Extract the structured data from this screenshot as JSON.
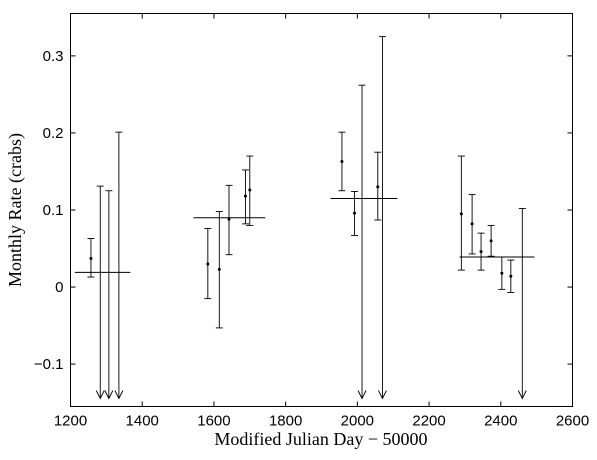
{
  "chart_data": {
    "type": "scatter",
    "title": "",
    "xlabel": "Modified Julian Day − 50000",
    "ylabel": "Monthly Rate (crabs)",
    "xlim": [
      1200,
      2600
    ],
    "ylim": [
      -0.155,
      0.355
    ],
    "grid": false,
    "xticks": [
      {
        "value": 1200,
        "label": "1200"
      },
      {
        "value": 1400,
        "label": "1400"
      },
      {
        "value": 1600,
        "label": "1600"
      },
      {
        "value": 1800,
        "label": "1800"
      },
      {
        "value": 2000,
        "label": "2000"
      },
      {
        "value": 2200,
        "label": "2200"
      },
      {
        "value": 2400,
        "label": "2400"
      },
      {
        "value": 2600,
        "label": "2600"
      }
    ],
    "yticks": [
      {
        "value": -0.1,
        "label": "−0.1"
      },
      {
        "value": 0,
        "label": "0"
      },
      {
        "value": 0.1,
        "label": "0.1"
      },
      {
        "value": 0.2,
        "label": "0.2"
      },
      {
        "value": 0.3,
        "label": "0.3"
      }
    ],
    "measurements": [
      {
        "x": 1257,
        "y": 0.037,
        "ylow": 0.013,
        "yhigh": 0.063
      },
      {
        "x": 1583,
        "y": 0.03,
        "ylow": -0.015,
        "yhigh": 0.076
      },
      {
        "x": 1615,
        "y": 0.023,
        "ylow": -0.053,
        "yhigh": 0.098
      },
      {
        "x": 1642,
        "y": 0.088,
        "ylow": 0.042,
        "yhigh": 0.132
      },
      {
        "x": 1688,
        "y": 0.118,
        "ylow": 0.082,
        "yhigh": 0.152
      },
      {
        "x": 1700,
        "y": 0.126,
        "ylow": 0.08,
        "yhigh": 0.17
      },
      {
        "x": 1957,
        "y": 0.163,
        "ylow": 0.125,
        "yhigh": 0.201
      },
      {
        "x": 1992,
        "y": 0.096,
        "ylow": 0.067,
        "yhigh": 0.124
      },
      {
        "x": 2057,
        "y": 0.13,
        "ylow": 0.087,
        "yhigh": 0.175
      },
      {
        "x": 2290,
        "y": 0.095,
        "ylow": 0.022,
        "yhigh": 0.17
      },
      {
        "x": 2320,
        "y": 0.082,
        "ylow": 0.043,
        "yhigh": 0.12
      },
      {
        "x": 2345,
        "y": 0.046,
        "ylow": 0.022,
        "yhigh": 0.07
      },
      {
        "x": 2373,
        "y": 0.06,
        "ylow": 0.04,
        "yhigh": 0.08
      },
      {
        "x": 2403,
        "y": 0.018,
        "ylow": -0.003,
        "yhigh": 0.039
      },
      {
        "x": 2428,
        "y": 0.014,
        "ylow": -0.007,
        "yhigh": 0.035
      }
    ],
    "upper_limits": [
      {
        "x": 1283,
        "yhigh": 0.131
      },
      {
        "x": 1307,
        "yhigh": 0.125
      },
      {
        "x": 1335,
        "yhigh": 0.201
      },
      {
        "x": 2013,
        "yhigh": 0.262
      },
      {
        "x": 2070,
        "yhigh": 0.325
      },
      {
        "x": 2460,
        "yhigh": 0.102
      }
    ],
    "period_averages": [
      {
        "x_start": 1212,
        "x_end": 1367,
        "y": 0.019
      },
      {
        "x_start": 1543,
        "x_end": 1743,
        "y": 0.09
      },
      {
        "x_start": 1925,
        "x_end": 2112,
        "y": 0.115
      },
      {
        "x_start": 2285,
        "x_end": 2494,
        "y": 0.039
      }
    ]
  }
}
